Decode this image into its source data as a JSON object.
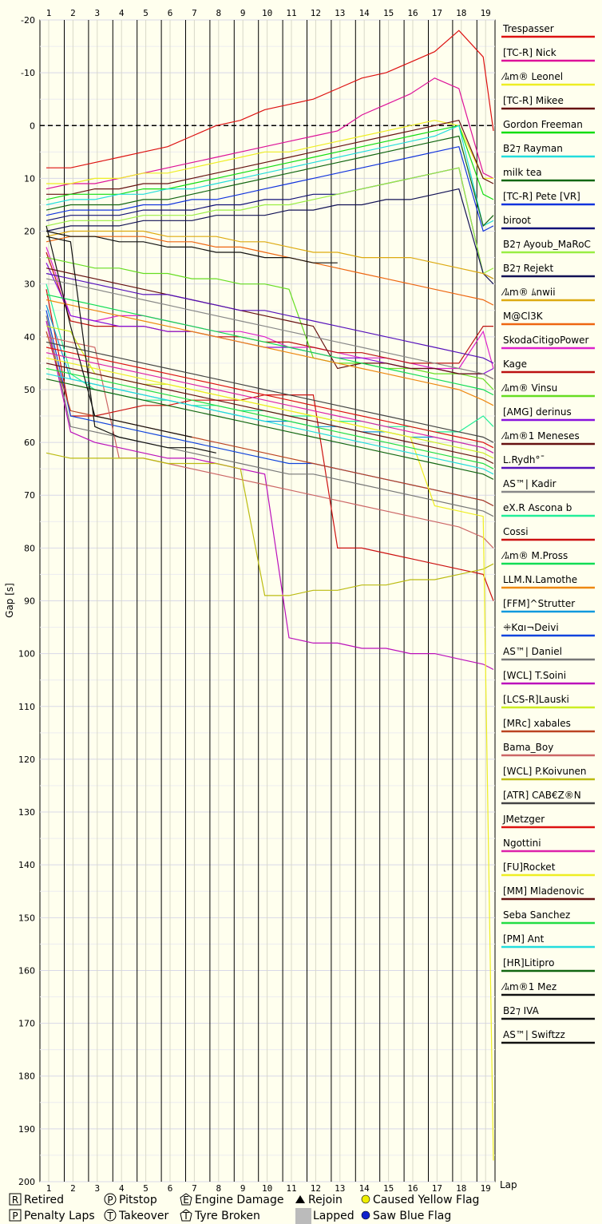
{
  "chart_data": {
    "type": "line",
    "ylabel": "Gap [s]",
    "xlabel": "Lap",
    "x_ticks": [
      1,
      2,
      3,
      4,
      5,
      6,
      7,
      8,
      9,
      10,
      11,
      12,
      13,
      14,
      15,
      16,
      17,
      18,
      19
    ],
    "y_ticks": [
      -20,
      -10,
      0,
      10,
      20,
      30,
      40,
      50,
      60,
      70,
      80,
      90,
      100,
      110,
      120,
      130,
      140,
      150,
      160,
      170,
      180,
      190,
      200
    ],
    "ylim": [
      -20,
      200
    ],
    "xlim": [
      0.6,
      19.5
    ],
    "grid": true,
    "legend_position": "right",
    "series": [
      {
        "name": "Trespasser",
        "color": "#dd1111",
        "values": [
          8,
          8,
          7,
          6,
          5,
          4,
          2,
          0,
          -1,
          -3,
          -4,
          -5,
          -7,
          -9,
          -10,
          -12,
          -14,
          -18,
          -13,
          1
        ]
      },
      {
        "name": "[TC-R] Nick",
        "color": "#dd1199",
        "values": [
          12,
          11,
          11,
          10,
          9,
          8,
          7,
          6,
          5,
          4,
          3,
          2,
          1,
          -2,
          -4,
          -6,
          -9,
          -7,
          9,
          10
        ]
      },
      {
        "name": "⁄ﾑm® Leonel",
        "color": "#eeee22",
        "values": [
          11,
          11,
          10,
          10,
          9,
          9,
          8,
          7,
          6,
          5,
          5,
          4,
          3,
          2,
          1,
          0,
          -1,
          0,
          10,
          10
        ]
      },
      {
        "name": "[TC-R] Mikee",
        "color": "#661111",
        "values": [
          13,
          13,
          12,
          12,
          11,
          11,
          10,
          9,
          8,
          7,
          6,
          5,
          4,
          3,
          2,
          1,
          0,
          -1,
          10,
          11
        ]
      },
      {
        "name": "Gordon Freeman",
        "color": "#11dd11",
        "values": [
          14,
          13,
          13,
          13,
          12,
          12,
          11,
          10,
          9,
          8,
          7,
          6,
          5,
          4,
          3,
          2,
          1,
          0,
          13,
          14
        ]
      },
      {
        "name": "B2⁊ Rayman",
        "color": "#22dddd",
        "values": [
          15,
          14,
          14,
          13,
          13,
          12,
          12,
          11,
          10,
          9,
          8,
          7,
          6,
          5,
          4,
          3,
          2,
          0,
          19,
          18
        ]
      },
      {
        "name": "milk tea",
        "color": "#116611",
        "values": [
          16,
          15,
          15,
          15,
          14,
          14,
          13,
          12,
          11,
          10,
          9,
          8,
          7,
          6,
          5,
          4,
          3,
          2,
          19,
          17
        ]
      },
      {
        "name": "[TC-R] Pete [VR]",
        "color": "#1133dd",
        "values": [
          17,
          16,
          16,
          16,
          15,
          15,
          14,
          14,
          13,
          12,
          11,
          10,
          9,
          8,
          7,
          6,
          5,
          4,
          20,
          19
        ]
      },
      {
        "name": "biroot",
        "color": "#111177",
        "values": [
          18,
          17,
          17,
          17,
          16,
          16,
          16,
          15,
          15,
          14,
          14,
          13,
          13,
          12,
          11,
          10,
          9,
          8,
          28,
          29
        ]
      },
      {
        "name": "B2⁊ Ayoub_MaRoC",
        "color": "#99ee44",
        "values": [
          19,
          18,
          18,
          18,
          17,
          17,
          17,
          16,
          16,
          15,
          15,
          14,
          13,
          12,
          11,
          10,
          9,
          8,
          28,
          27
        ]
      },
      {
        "name": "B2⁊ Rejekt",
        "color": "#111155",
        "values": [
          20,
          19,
          19,
          19,
          18,
          18,
          18,
          17,
          17,
          17,
          16,
          16,
          15,
          15,
          14,
          14,
          13,
          12,
          28,
          30
        ]
      },
      {
        "name": "⁄ﾑm® ﾑnwii",
        "color": "#ddaa11",
        "values": [
          21,
          20,
          20,
          20,
          20,
          21,
          21,
          21,
          22,
          22,
          23,
          24,
          24,
          25,
          25,
          25,
          26,
          27,
          28,
          29
        ]
      },
      {
        "name": "M@Cl3K",
        "color": "#ee6611",
        "values": [
          22,
          21,
          21,
          21,
          21,
          22,
          22,
          23,
          23,
          24,
          25,
          26,
          27,
          28,
          29,
          30,
          31,
          32,
          33,
          34
        ]
      },
      {
        "name": "SkodaCitigoPower",
        "color": "#dd22cc",
        "values": [
          23,
          36,
          37,
          36,
          36,
          37,
          38,
          39,
          39,
          40,
          42,
          42,
          43,
          44,
          44,
          45,
          46,
          46,
          39,
          46
        ]
      },
      {
        "name": "Kage",
        "color": "#bb1111",
        "values": [
          24,
          37,
          38,
          38,
          38,
          39,
          39,
          40,
          40,
          41,
          41,
          42,
          43,
          43,
          44,
          45,
          45,
          45,
          38,
          38
        ]
      },
      {
        "name": "⁄ﾑm® Vinsu",
        "color": "#66dd22",
        "values": [
          25,
          26,
          27,
          27,
          28,
          28,
          29,
          29,
          30,
          30,
          31,
          44,
          45,
          45,
          46,
          46,
          47,
          47,
          48,
          50
        ]
      },
      {
        "name": "[AMG] derinus",
        "color": "#8811dd",
        "values": [
          26,
          36,
          37,
          38,
          38,
          39,
          39,
          40,
          41,
          42,
          42,
          43,
          44,
          44,
          45,
          46,
          46,
          47,
          47,
          46
        ]
      },
      {
        "name": "⁄ﾑm®1 Meneses",
        "color": "#661111",
        "values": [
          27,
          28,
          29,
          30,
          31,
          32,
          33,
          34,
          35,
          36,
          37,
          38,
          46,
          45,
          45,
          46,
          46,
          47,
          47,
          48
        ]
      },
      {
        "name": "L.Rydh°¯",
        "color": "#5511bb",
        "values": [
          28,
          29,
          30,
          31,
          32,
          32,
          33,
          34,
          35,
          35,
          36,
          37,
          38,
          39,
          40,
          41,
          42,
          43,
          44,
          45
        ]
      },
      {
        "name": "AS™| Kadir",
        "color": "#888888",
        "values": [
          29,
          30,
          31,
          32,
          33,
          34,
          35,
          36,
          37,
          38,
          39,
          40,
          41,
          42,
          43,
          44,
          45,
          46,
          47,
          48
        ]
      },
      {
        "name": "eX.R Ascona b",
        "color": "#22ee99",
        "values": [
          30,
          47,
          50,
          51,
          52,
          52,
          53,
          53,
          54,
          54,
          55,
          55,
          56,
          56,
          57,
          57,
          58,
          58,
          55,
          57
        ]
      },
      {
        "name": "Cossi",
        "color": "#cc1111",
        "values": [
          31,
          55,
          55,
          54,
          53,
          53,
          52,
          52,
          52,
          51,
          51,
          51,
          80,
          80,
          81,
          82,
          83,
          84,
          85,
          90
        ]
      },
      {
        "name": "⁄ﾑm® M.Pross",
        "color": "#11dd55",
        "values": [
          32,
          33,
          34,
          35,
          36,
          37,
          38,
          39,
          40,
          41,
          42,
          43,
          44,
          45,
          46,
          47,
          48,
          49,
          50,
          51
        ]
      },
      {
        "name": "LLM.N.Lamothe",
        "color": "#ee8811",
        "values": [
          33,
          34,
          35,
          36,
          37,
          38,
          39,
          40,
          41,
          42,
          43,
          44,
          45,
          46,
          47,
          48,
          49,
          50,
          52,
          53
        ]
      },
      {
        "name": "[FFM]^Strutter",
        "color": "#1199dd",
        "values": [
          34,
          48,
          49,
          50,
          51,
          52,
          53,
          54,
          55,
          56,
          56,
          57,
          57,
          58,
          58,
          59,
          59,
          60,
          61,
          62
        ]
      },
      {
        "name": "ꔰKɑı¬Deivi",
        "color": "#1144dd",
        "values": [
          35,
          55,
          56,
          57,
          58,
          59,
          60,
          61,
          62,
          63,
          64,
          64,
          65,
          66,
          67,
          68,
          69,
          70,
          71,
          72
        ]
      },
      {
        "name": "AS™| Daniel",
        "color": "#777777",
        "values": [
          36,
          57,
          58,
          59,
          60,
          61,
          62,
          63,
          64,
          65,
          66,
          66,
          67,
          68,
          69,
          70,
          71,
          72,
          73,
          74
        ]
      },
      {
        "name": "[WCL] T.Soini",
        "color": "#bb11bb",
        "values": [
          37,
          58,
          60,
          61,
          62,
          63,
          63,
          64,
          65,
          66,
          97,
          98,
          98,
          99,
          99,
          100,
          100,
          101,
          102,
          103
        ]
      },
      {
        "name": "[LCS-R]Lauski",
        "color": "#ccee22",
        "values": [
          38,
          39,
          47,
          48,
          49,
          49,
          50,
          51,
          52,
          53,
          54,
          55,
          56,
          57,
          58,
          59,
          60,
          61,
          62,
          63
        ]
      },
      {
        "name": "[MRc] xabales",
        "color": "#bb4422",
        "values": [
          39,
          54,
          55,
          56,
          57,
          58,
          59,
          60,
          61,
          62,
          63,
          64,
          65,
          66,
          67,
          68,
          69,
          70,
          71,
          72
        ]
      },
      {
        "name": "Bama_Boy",
        "color": "#cc6666",
        "values": [
          40,
          41,
          42,
          63,
          63,
          64,
          65,
          66,
          67,
          68,
          69,
          70,
          71,
          72,
          73,
          74,
          75,
          76,
          78,
          80
        ]
      },
      {
        "name": "[WCL] P.Koivunen",
        "color": "#bbbb11",
        "values": [
          62,
          63,
          63,
          63,
          63,
          64,
          64,
          64,
          65,
          89,
          89,
          88,
          88,
          87,
          87,
          86,
          86,
          85,
          84,
          83
        ]
      },
      {
        "name": "[ATR] CAB€Z®N",
        "color": "#444444",
        "values": [
          41,
          42,
          43,
          44,
          45,
          46,
          47,
          48,
          49,
          50,
          51,
          52,
          53,
          54,
          55,
          56,
          57,
          58,
          59,
          60
        ]
      },
      {
        "name": "JMetzger",
        "color": "#dd1111",
        "values": [
          42,
          43,
          44,
          45,
          46,
          47,
          48,
          49,
          50,
          51,
          52,
          53,
          54,
          55,
          56,
          57,
          58,
          59,
          60,
          61
        ]
      },
      {
        "name": "Ngottini",
        "color": "#dd22aa",
        "values": [
          43,
          44,
          45,
          46,
          47,
          48,
          49,
          50,
          51,
          52,
          53,
          54,
          55,
          56,
          57,
          58,
          59,
          60,
          61,
          62
        ]
      },
      {
        "name": "[FU]Rocket",
        "color": "#eeee22",
        "values": [
          44,
          45,
          46,
          47,
          48,
          49,
          50,
          51,
          52,
          53,
          54,
          55,
          56,
          57,
          58,
          59,
          72,
          73,
          74,
          196
        ]
      },
      {
        "name": "[MM] Mladenovic",
        "color": "#661111",
        "values": [
          45,
          46,
          47,
          48,
          49,
          50,
          51,
          52,
          53,
          54,
          55,
          56,
          57,
          58,
          59,
          60,
          61,
          62,
          63,
          64
        ]
      },
      {
        "name": "Seba Sanchez",
        "color": "#22dd44",
        "values": [
          46,
          47,
          48,
          49,
          50,
          51,
          52,
          53,
          54,
          55,
          56,
          57,
          58,
          59,
          60,
          61,
          62,
          63,
          64,
          65
        ]
      },
      {
        "name": "[PM] Ant",
        "color": "#22dddd",
        "values": [
          47,
          48,
          49,
          50,
          51,
          52,
          53,
          54,
          55,
          56,
          57,
          58,
          59,
          60,
          61,
          62,
          63,
          64,
          65,
          66
        ]
      },
      {
        "name": "[HR]Litipro",
        "color": "#116611",
        "values": [
          48,
          49,
          50,
          51,
          52,
          53,
          54,
          55,
          56,
          57,
          58,
          59,
          60,
          61,
          62,
          63,
          64,
          65,
          66,
          67
        ]
      },
      {
        "name": "⁄ﾑm®1 Mez",
        "color": "#111111",
        "values": [
          21,
          22,
          57,
          59,
          60,
          61,
          61,
          62
        ]
      },
      {
        "name": "B2⁊ IVA",
        "color": "#111111",
        "values": [
          20,
          21,
          21,
          22,
          22,
          23,
          23,
          24,
          24,
          25,
          25,
          26,
          26
        ]
      },
      {
        "name": "AS™| Swiftzz",
        "color": "#111111",
        "values": [
          19,
          38,
          55,
          56,
          57,
          58,
          59
        ]
      }
    ],
    "legend_title": "",
    "key": [
      {
        "symbol": "R",
        "label": "Retired"
      },
      {
        "symbol": "P",
        "label": "Penalty Laps"
      },
      {
        "symbol": "P",
        "label": "Pitstop"
      },
      {
        "symbol": "T",
        "label": "Takeover"
      },
      {
        "symbol": "E",
        "label": "Engine Damage"
      },
      {
        "symbol": "T",
        "label": "Tyre Broken"
      },
      {
        "symbol": "▲",
        "label": "Rejoin"
      },
      {
        "symbol": "■",
        "label": "Lapped"
      },
      {
        "symbol": "●",
        "label": "Caused Yellow Flag"
      },
      {
        "symbol": "●",
        "label": "Saw Blue Flag"
      }
    ]
  }
}
